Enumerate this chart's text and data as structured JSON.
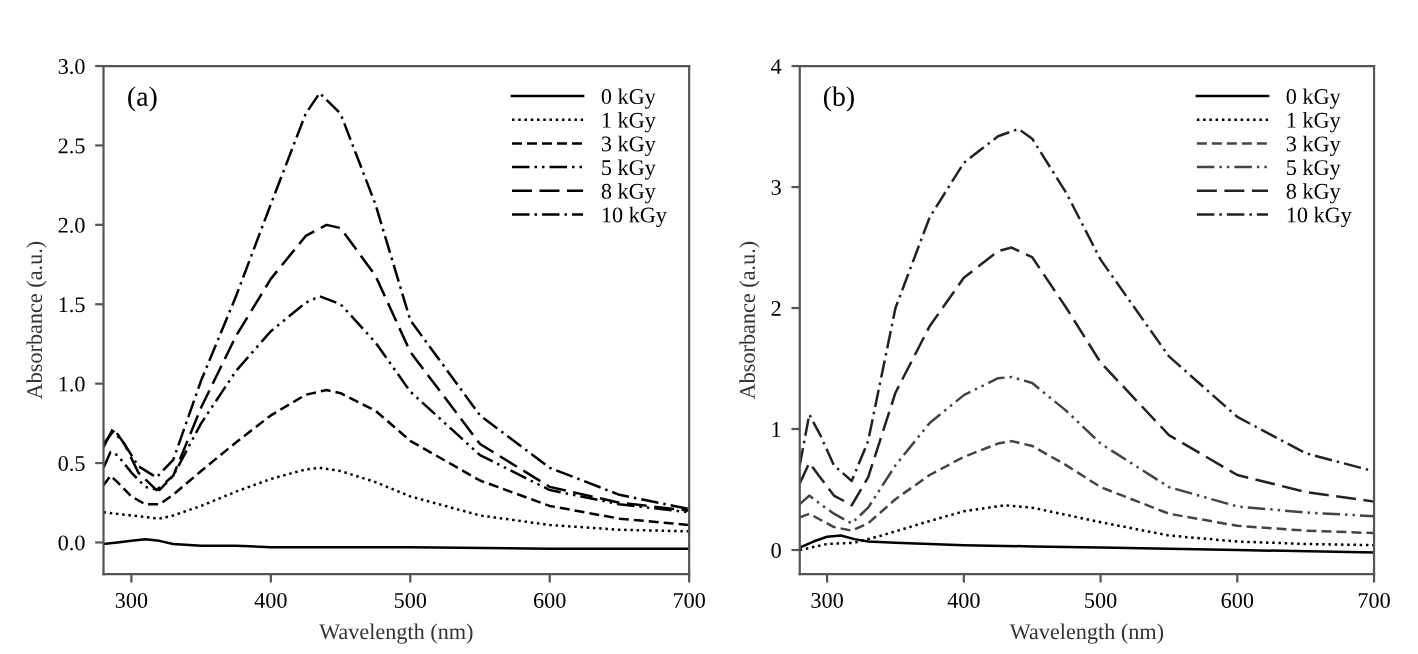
{
  "chart_data": [
    {
      "type": "line",
      "xlabel": "Wavelength (nm)",
      "ylabel": "Absorbance (a.u.)",
      "annotations": [
        "(a)"
      ],
      "xlim": [
        280,
        700
      ],
      "xticks": [
        300,
        400,
        500,
        600,
        700
      ],
      "ylim": [
        -0.2,
        3.0
      ],
      "yticks": [
        {
          "value": 0,
          "label": "0.0"
        },
        0.5,
        {
          "value": 1,
          "label": "1.0"
        },
        1.5,
        {
          "value": 2,
          "label": "2.0"
        },
        2.5,
        {
          "value": 3,
          "label": "3.0"
        }
      ],
      "legend": "top right",
      "grid": false,
      "marker": "none",
      "series": [
        {
          "name": "0 kGy",
          "color": "#000000",
          "line_style": "solid",
          "x": [
            280,
            290,
            300,
            310,
            320,
            330,
            350,
            375,
            400,
            450,
            500,
            600,
            700
          ],
          "values": [
            -0.01,
            0.0,
            0.01,
            0.02,
            0.01,
            -0.01,
            -0.02,
            -0.02,
            -0.03,
            -0.03,
            -0.03,
            -0.04,
            -0.04
          ]
        },
        {
          "name": "1 kGy",
          "color": "#000000",
          "line_style": "dotted",
          "x": [
            280,
            290,
            300,
            310,
            320,
            330,
            350,
            375,
            400,
            425,
            435,
            450,
            475,
            500,
            550,
            600,
            650,
            700
          ],
          "values": [
            0.19,
            0.18,
            0.17,
            0.16,
            0.15,
            0.17,
            0.23,
            0.32,
            0.4,
            0.46,
            0.47,
            0.45,
            0.38,
            0.29,
            0.17,
            0.11,
            0.08,
            0.07
          ]
        },
        {
          "name": "3 kGy",
          "color": "#000000",
          "line_style": "dashed",
          "x": [
            280,
            285,
            290,
            300,
            310,
            320,
            330,
            350,
            375,
            400,
            425,
            440,
            450,
            475,
            500,
            550,
            600,
            650,
            700
          ],
          "values": [
            0.36,
            0.42,
            0.38,
            0.29,
            0.24,
            0.24,
            0.3,
            0.45,
            0.63,
            0.8,
            0.93,
            0.96,
            0.94,
            0.83,
            0.64,
            0.39,
            0.23,
            0.15,
            0.11
          ]
        },
        {
          "name": "5 kGy",
          "color": "#000000",
          "line_style": "dashdotdot",
          "x": [
            280,
            285,
            290,
            300,
            310,
            320,
            330,
            350,
            375,
            400,
            425,
            435,
            450,
            475,
            500,
            550,
            600,
            650,
            700
          ],
          "values": [
            0.47,
            0.57,
            0.55,
            0.44,
            0.35,
            0.33,
            0.42,
            0.75,
            1.08,
            1.33,
            1.51,
            1.55,
            1.5,
            1.26,
            0.95,
            0.55,
            0.33,
            0.24,
            0.19
          ]
        },
        {
          "name": "8 kGy",
          "color": "#000000",
          "line_style": "longdash",
          "x": [
            280,
            287,
            295,
            305,
            318,
            330,
            350,
            375,
            400,
            425,
            440,
            450,
            475,
            500,
            550,
            600,
            650,
            700
          ],
          "values": [
            0.6,
            0.72,
            0.62,
            0.44,
            0.33,
            0.42,
            0.85,
            1.3,
            1.66,
            1.93,
            2.0,
            1.98,
            1.68,
            1.2,
            0.62,
            0.35,
            0.25,
            0.2
          ]
        },
        {
          "name": "10 kGy",
          "color": "#000000",
          "line_style": "dashdot",
          "x": [
            280,
            287,
            295,
            305,
            318,
            330,
            350,
            375,
            400,
            425,
            435,
            450,
            475,
            500,
            550,
            600,
            650,
            700
          ],
          "values": [
            0.62,
            0.7,
            0.62,
            0.48,
            0.41,
            0.52,
            1.02,
            1.55,
            2.13,
            2.7,
            2.83,
            2.7,
            2.13,
            1.4,
            0.8,
            0.47,
            0.3,
            0.21
          ]
        }
      ]
    },
    {
      "type": "line",
      "xlabel": "Wavelength (nm)",
      "ylabel": "Absorbance (a.u.)",
      "annotations": [
        "(b)"
      ],
      "xlim": [
        280,
        700
      ],
      "xticks": [
        300,
        400,
        500,
        600,
        700
      ],
      "ylim": [
        -0.2,
        4
      ],
      "yticks": [
        0,
        1,
        2,
        3,
        4
      ],
      "legend": "top right",
      "grid": false,
      "marker": "none",
      "series": [
        {
          "name": "0 kGy",
          "color": "#000000",
          "line_style": "solid",
          "x": [
            280,
            290,
            300,
            310,
            320,
            330,
            350,
            400,
            450,
            500,
            600,
            700
          ],
          "values": [
            0.02,
            0.07,
            0.11,
            0.12,
            0.09,
            0.07,
            0.06,
            0.04,
            0.03,
            0.02,
            0.0,
            -0.02
          ]
        },
        {
          "name": "1 kGy",
          "color": "#000000",
          "line_style": "dotted",
          "x": [
            280,
            300,
            320,
            340,
            375,
            400,
            430,
            450,
            500,
            550,
            600,
            650,
            700
          ],
          "values": [
            0.0,
            0.05,
            0.06,
            0.12,
            0.24,
            0.32,
            0.37,
            0.35,
            0.23,
            0.12,
            0.07,
            0.05,
            0.04
          ]
        },
        {
          "name": "3 kGy",
          "color": "#444444",
          "line_style": "dashed",
          "x": [
            280,
            287,
            295,
            305,
            318,
            330,
            350,
            375,
            400,
            425,
            435,
            450,
            475,
            500,
            550,
            600,
            650,
            700
          ],
          "values": [
            0.27,
            0.3,
            0.25,
            0.19,
            0.16,
            0.22,
            0.42,
            0.62,
            0.77,
            0.88,
            0.9,
            0.86,
            0.7,
            0.52,
            0.3,
            0.2,
            0.16,
            0.14
          ]
        },
        {
          "name": "5 kGy",
          "color": "#444444",
          "line_style": "dashdotdot",
          "x": [
            280,
            287,
            295,
            305,
            318,
            330,
            350,
            375,
            400,
            425,
            435,
            450,
            475,
            500,
            550,
            600,
            650,
            700
          ],
          "values": [
            0.38,
            0.45,
            0.38,
            0.3,
            0.22,
            0.35,
            0.7,
            1.05,
            1.28,
            1.42,
            1.43,
            1.38,
            1.15,
            0.88,
            0.52,
            0.36,
            0.31,
            0.28
          ]
        },
        {
          "name": "8 kGy",
          "color": "#222222",
          "line_style": "longdash",
          "x": [
            280,
            287,
            295,
            305,
            318,
            330,
            350,
            375,
            400,
            425,
            435,
            450,
            475,
            500,
            550,
            600,
            650,
            700
          ],
          "values": [
            0.55,
            0.72,
            0.6,
            0.45,
            0.37,
            0.6,
            1.3,
            1.85,
            2.25,
            2.47,
            2.5,
            2.42,
            2.0,
            1.55,
            0.95,
            0.62,
            0.48,
            0.4
          ]
        },
        {
          "name": "10 kGy",
          "color": "#222222",
          "line_style": "dashdot",
          "x": [
            280,
            287,
            295,
            305,
            318,
            330,
            350,
            375,
            400,
            425,
            440,
            450,
            475,
            500,
            550,
            600,
            650,
            700
          ],
          "values": [
            0.7,
            1.12,
            0.95,
            0.7,
            0.57,
            0.9,
            2.0,
            2.75,
            3.2,
            3.42,
            3.48,
            3.4,
            2.95,
            2.4,
            1.6,
            1.1,
            0.8,
            0.65
          ]
        }
      ]
    }
  ]
}
